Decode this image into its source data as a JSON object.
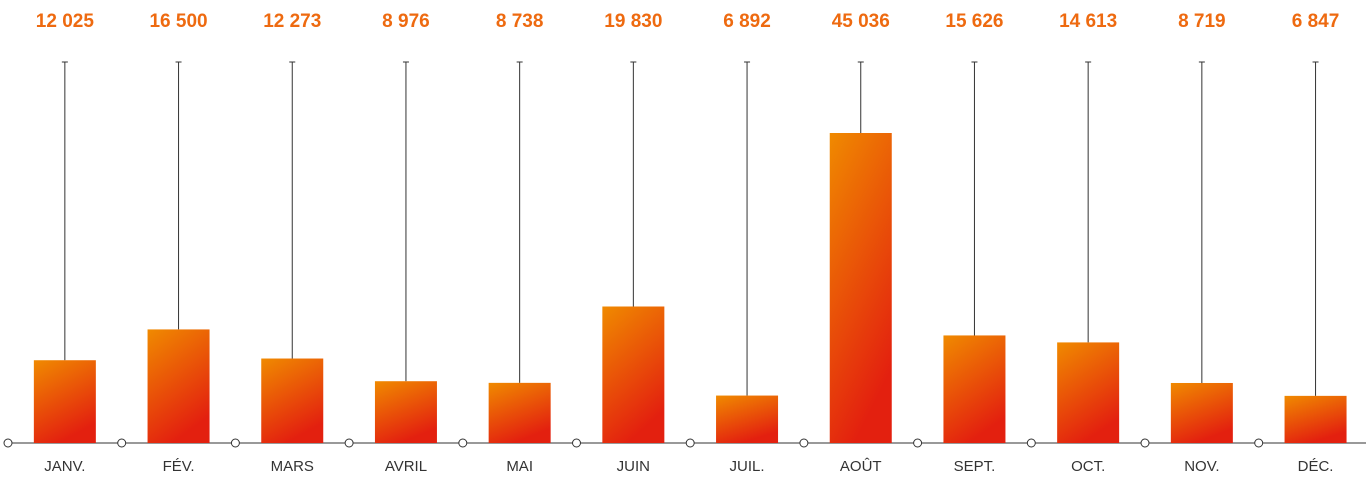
{
  "chart_data": {
    "type": "bar",
    "categories": [
      "JANV.",
      "FÉV.",
      "MARS",
      "AVRIL",
      "MAI",
      "JUIN",
      "JUIL.",
      "AOÛT",
      "SEPT.",
      "OCT.",
      "NOV.",
      "DÉC."
    ],
    "values": [
      12025,
      16500,
      12273,
      8976,
      8738,
      19830,
      6892,
      45036,
      15626,
      14613,
      8719,
      6847
    ],
    "value_labels": [
      "12 025",
      "16 500",
      "12 273",
      "8 976",
      "8 738",
      "19 830",
      "6 892",
      "45 036",
      "15 626",
      "14 613",
      "8 719",
      "6 847"
    ],
    "color": [
      "#f08a00",
      "#e3200f"
    ],
    "label_color": "#ee6a10"
  }
}
